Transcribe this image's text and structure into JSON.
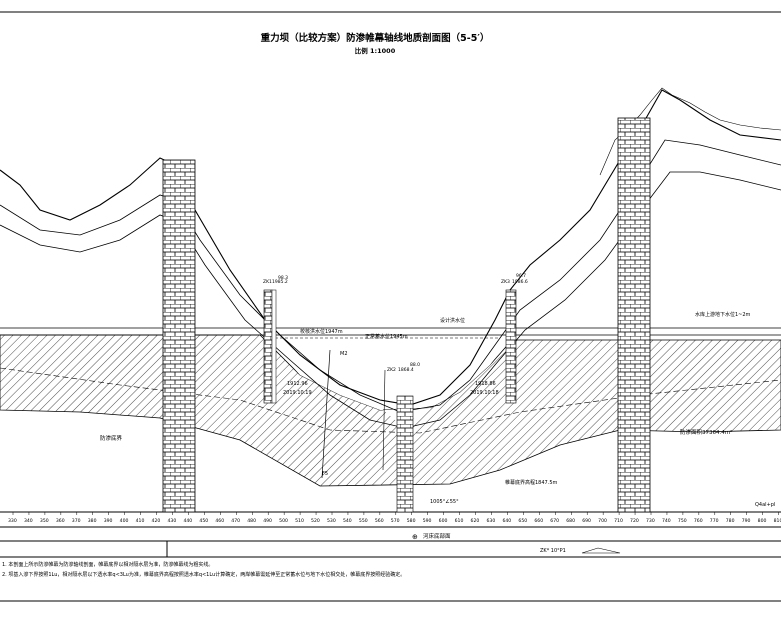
{
  "title": "重力坝（比较方案）防渗帷幕轴线地质剖面图（5-5′）",
  "scale_label": "比例 1:1000",
  "labels": {
    "normal_water_level": "正常蓄水位1945m",
    "design_flood_level": "设计洪水位",
    "check_flood_level": "校核洪水位1947m",
    "groundwater_line": "水库上游地下水位1~2m",
    "curtain_bottom": "防渗底界",
    "curtain_area": "防渗面积37364.4m²",
    "bedrock_elevation": "帷幕底界高程1847.5m",
    "boreholes": [
      {
        "id": "ZK1",
        "elev": "1985.2",
        "depth": "98.3"
      },
      {
        "id": "ZK2",
        "elev": "1868.4",
        "depth": "88.0"
      },
      {
        "id": "ZK3",
        "elev": "1986.6",
        "depth": "96.7"
      }
    ],
    "water_readings": [
      {
        "value": "1912.96",
        "date": "2019.10.19"
      },
      {
        "value": "1918.86",
        "date": "2019.10.18"
      }
    ],
    "slope_note": "1005°∠55°",
    "section_marker": "河床底部面",
    "fault_marker": "F5",
    "fault_note": "M2",
    "corner_code": "Q4al+pl",
    "legend_note": "ZK* 10°P1"
  },
  "axis": {
    "ticks": [
      "330",
      "340",
      "350",
      "360",
      "370",
      "380",
      "390",
      "400",
      "410",
      "420",
      "430",
      "440",
      "450",
      "460",
      "470",
      "480",
      "490",
      "500",
      "510",
      "520",
      "530",
      "540",
      "550",
      "560",
      "570",
      "580",
      "590",
      "600",
      "610",
      "620",
      "630",
      "640",
      "650",
      "660",
      "670",
      "680",
      "690",
      "700",
      "710",
      "720",
      "730",
      "740",
      "750",
      "760",
      "770",
      "780",
      "790",
      "800",
      "810",
      "820"
    ]
  },
  "notes": {
    "line1": "1. 本剖面上所示防渗帷幕为防渗轴线剖面，帷幕底界以相对隔水层为准，防渗帷幕线为粗实线。",
    "line2": "2. 坝基入渗下界按照1Lu，相对隔水层以下透水率q<3Lu为准，帷幕底界高程按照透水率q<1Lu计算确定，两岸帷幕需延伸至正常蓄水位与地下水位相交处，帷幕底界按照经验确定。"
  },
  "colors": {
    "line": "#000000",
    "hatch": "#000000",
    "water": "#000000"
  }
}
